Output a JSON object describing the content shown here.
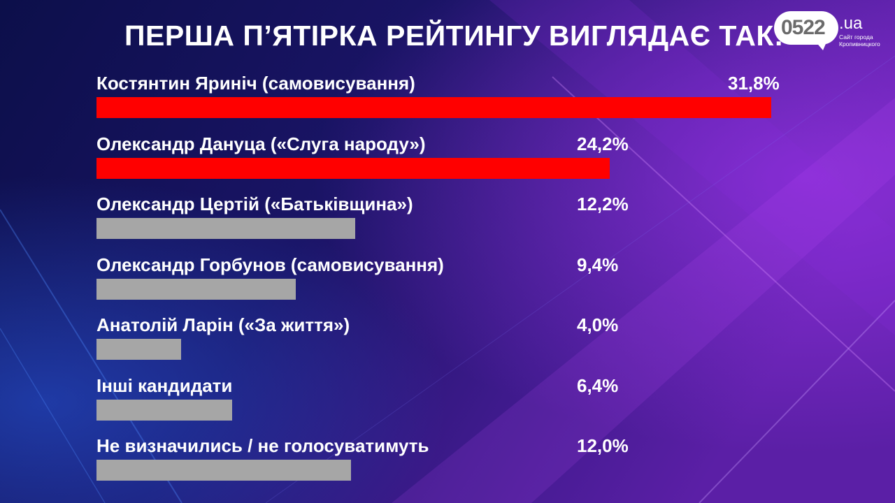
{
  "title": "ПЕРША П’ЯТІРКА РЕЙТИНГУ ВИГЛЯДАЄ ТАК:",
  "logo": {
    "number": "0522",
    "domain": ".ua",
    "tagline": "Сайт города Кропивницкого"
  },
  "colors": {
    "highlight_bar": "#ff0000",
    "other_bar": "#a6a6a6",
    "background": "#120f4e"
  },
  "chart_data": {
    "type": "bar",
    "orientation": "horizontal",
    "title": "ПЕРША П’ЯТІРКА РЕЙТИНГУ ВИГЛЯДАЄ ТАК:",
    "unit": "%",
    "categories": [
      "Костянтин Яриніч (самовисування)",
      "Олександр Дануца («Слуга народу»)",
      "Олександр Цертій («Батьківщина»)",
      "Олександр Горбунов (самовисування)",
      "Анатолій Ларін («За життя»)",
      "Інші кандидати",
      "Не визначились / не голосуватимуть"
    ],
    "values": [
      31.8,
      24.2,
      12.2,
      9.4,
      4.0,
      6.4,
      12.0
    ],
    "value_labels": [
      "31,8%",
      "24,2%",
      "12,2%",
      "9,4%",
      "4,0%",
      "6,4%",
      "12,0%"
    ],
    "highlighted": [
      true,
      true,
      false,
      false,
      false,
      false,
      false
    ],
    "xlim": [
      0,
      31.8
    ],
    "grid": false,
    "legend": "none"
  }
}
